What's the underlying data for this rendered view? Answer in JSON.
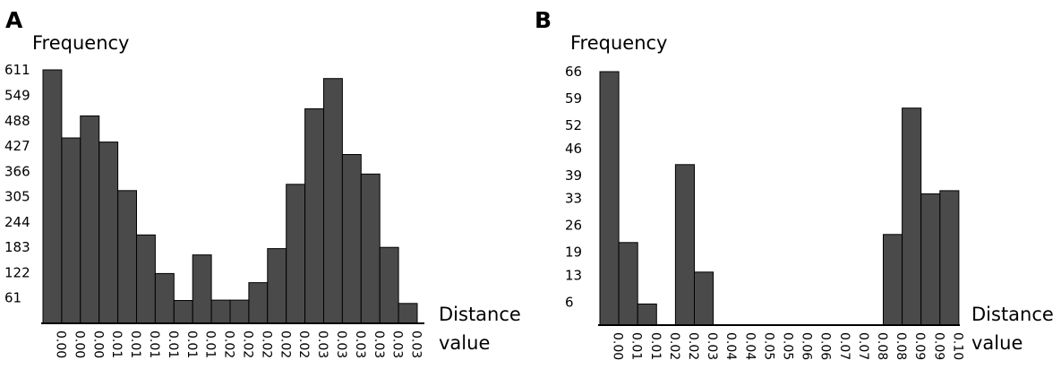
{
  "chart_data": [
    {
      "type": "bar",
      "panel": "A",
      "ylabel": "Frequency",
      "xlabel_lines": [
        "Distance",
        "value"
      ],
      "yticks": [
        61,
        122,
        183,
        244,
        305,
        366,
        427,
        488,
        549,
        611
      ],
      "ylim": [
        0,
        611
      ],
      "categories": [
        "0.00",
        "0.00",
        "0.00",
        "0.01",
        "0.01",
        "0.01",
        "0.01",
        "0.01",
        "0.01",
        "0.02",
        "0.02",
        "0.02",
        "0.02",
        "0.02",
        "0.03",
        "0.03",
        "0.03",
        "0.03",
        "0.03",
        "0.03"
      ],
      "values": [
        611,
        447,
        500,
        437,
        320,
        213,
        120,
        55,
        165,
        56,
        56,
        98,
        180,
        335,
        517,
        590,
        407,
        360,
        183,
        48
      ]
    },
    {
      "type": "bar",
      "panel": "B",
      "ylabel": "Frequency",
      "xlabel_lines": [
        "Distance",
        "value"
      ],
      "yticks": [
        6,
        13,
        19,
        26,
        33,
        39,
        46,
        52,
        59,
        66
      ],
      "ylim": [
        0,
        66
      ],
      "categories": [
        "0.00",
        "0.01",
        "0.01",
        "0.02",
        "0.02",
        "0.03",
        "0.04",
        "0.04",
        "0.05",
        "0.05",
        "0.06",
        "0.06",
        "0.07",
        "0.07",
        "0.08",
        "0.08",
        "0.09",
        "0.09",
        "0.10"
      ],
      "values": [
        66,
        21.5,
        5.5,
        0,
        41.8,
        13.8,
        0,
        0,
        0,
        0,
        0,
        0,
        0,
        0,
        0,
        23.6,
        56.5,
        34.2,
        35
      ]
    }
  ]
}
